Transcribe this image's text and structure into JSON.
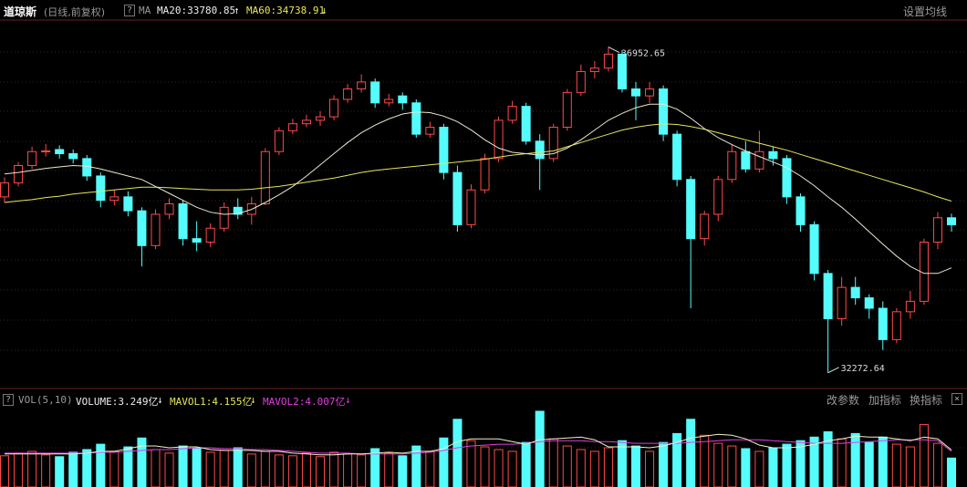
{
  "header": {
    "symbol": "道琼斯",
    "period": "(日线,前复权)",
    "help": "?",
    "ma_label": "MA",
    "ma20": "MA20:33780.85",
    "ma20_arrow": "↑",
    "ma60": "MA60:34738.91",
    "ma60_arrow": "↓",
    "settings": "设置均线"
  },
  "chart_data": {
    "type": "candlestick",
    "open": [
      34800,
      35000,
      35250,
      35450,
      35480,
      35420,
      35350,
      35100,
      34750,
      34800,
      34600,
      34100,
      34550,
      34700,
      34200,
      34150,
      34350,
      34650,
      34550,
      34700,
      35450,
      35750,
      35850,
      35900,
      35950,
      36200,
      36350,
      36450,
      36150,
      36250,
      36150,
      35700,
      35800,
      35150,
      34400,
      34900,
      35350,
      35900,
      36100,
      35600,
      35350,
      35800,
      36300,
      36600,
      36650,
      36850,
      36350,
      36250,
      36350,
      35700,
      35050,
      34200,
      34550,
      35050,
      35450,
      35200,
      35450,
      35350,
      34800,
      34400,
      33700,
      33050,
      33500,
      33350,
      33200,
      32750,
      33150,
      33300,
      34150,
      34500
    ],
    "high": [
      35080,
      35300,
      35520,
      35560,
      35540,
      35480,
      35400,
      35150,
      34900,
      34880,
      34650,
      34620,
      34780,
      34750,
      34450,
      34420,
      34720,
      34780,
      34800,
      35500,
      35800,
      35920,
      35980,
      36030,
      36260,
      36420,
      36560,
      36500,
      36280,
      36300,
      36200,
      35880,
      35850,
      35250,
      34980,
      35420,
      35950,
      36180,
      36150,
      35700,
      35850,
      36350,
      36700,
      36750,
      36952.65,
      36900,
      36450,
      36450,
      36400,
      35750,
      35100,
      34600,
      35100,
      35550,
      35600,
      35750,
      35520,
      35400,
      34850,
      34450,
      33750,
      33650,
      33650,
      33400,
      33300,
      33200,
      33450,
      34200,
      34580,
      34560
    ],
    "low": [
      34720,
      34950,
      35200,
      35380,
      35350,
      35280,
      35030,
      34650,
      34680,
      34520,
      33800,
      34050,
      34480,
      34100,
      34020,
      34080,
      34300,
      34480,
      34400,
      34680,
      35400,
      35700,
      35800,
      35820,
      35900,
      36150,
      36300,
      36080,
      36100,
      36050,
      35650,
      35650,
      35050,
      34300,
      34350,
      34850,
      35300,
      35850,
      35550,
      34900,
      35300,
      35750,
      36250,
      36500,
      36600,
      36300,
      35900,
      36150,
      35600,
      34950,
      33200,
      34100,
      34450,
      35000,
      35150,
      35150,
      35250,
      34700,
      34300,
      33600,
      32272.64,
      32950,
      33250,
      33050,
      32600,
      32700,
      33050,
      33250,
      34050,
      34300
    ],
    "close": [
      35000,
      35250,
      35450,
      35460,
      35420,
      35350,
      35100,
      34750,
      34800,
      34600,
      34100,
      34550,
      34700,
      34200,
      34150,
      34350,
      34650,
      34550,
      34700,
      35450,
      35750,
      35850,
      35900,
      35950,
      36200,
      36350,
      36450,
      36150,
      36200,
      36150,
      35700,
      35800,
      35150,
      34400,
      34900,
      35350,
      35900,
      36100,
      35600,
      35350,
      35800,
      36300,
      36600,
      36650,
      36850,
      36350,
      36250,
      36350,
      35700,
      35050,
      34200,
      34550,
      35050,
      35450,
      35200,
      35450,
      35350,
      34800,
      34400,
      33700,
      33050,
      33500,
      33350,
      33200,
      32750,
      33150,
      33300,
      34150,
      34500,
      34400
    ],
    "ma20": [
      35130,
      35150,
      35180,
      35210,
      35230,
      35250,
      35240,
      35200,
      35150,
      35100,
      35050,
      34950,
      34850,
      34750,
      34650,
      34580,
      34550,
      34560,
      34620,
      34720,
      34830,
      34950,
      35100,
      35260,
      35420,
      35580,
      35720,
      35830,
      35920,
      35990,
      36020,
      36010,
      35960,
      35880,
      35760,
      35620,
      35500,
      35440,
      35420,
      35400,
      35420,
      35500,
      35620,
      35760,
      35900,
      36000,
      36080,
      36130,
      36130,
      36060,
      35930,
      35780,
      35650,
      35550,
      35460,
      35380,
      35300,
      35220,
      35100,
      34960,
      34800,
      34650,
      34480,
      34300,
      34120,
      33950,
      33800,
      33700,
      33700,
      33780.85
    ],
    "ma60": [
      34720,
      34740,
      34760,
      34790,
      34810,
      34840,
      34860,
      34880,
      34900,
      34920,
      34940,
      34940,
      34930,
      34920,
      34910,
      34900,
      34900,
      34900,
      34910,
      34930,
      34950,
      34980,
      35010,
      35040,
      35070,
      35110,
      35150,
      35180,
      35200,
      35220,
      35240,
      35260,
      35280,
      35300,
      35320,
      35340,
      35370,
      35400,
      35420,
      35440,
      35460,
      35520,
      35580,
      35640,
      35700,
      35760,
      35800,
      35830,
      35850,
      35840,
      35810,
      35770,
      35720,
      35670,
      35620,
      35570,
      35520,
      35470,
      35410,
      35350,
      35290,
      35230,
      35170,
      35110,
      35050,
      34990,
      34930,
      34870,
      34800,
      34738.91
    ],
    "ma20_color": "#e8e8d0",
    "ma60_color": "#e6e65a",
    "up_color": "#ff4a4a",
    "down_color": "#54fcfc",
    "ylim": [
      32100,
      37300
    ],
    "annotations": [
      {
        "text": "36952.65",
        "index": 44,
        "at": "high"
      },
      {
        "text": "32272.64",
        "index": 60,
        "at": "low"
      }
    ]
  },
  "volume": {
    "help": "?",
    "label": "VOL(5,10)",
    "volume": "VOLUME:3.249亿",
    "volume_arrow": "↓",
    "mavol1": "MAVOL1:4.155亿",
    "mavol1_arrow": "↓",
    "mavol2": "MAVOL2:4.007亿",
    "mavol2_arrow": "↓",
    "buttons": [
      "改参数",
      "加指标",
      "换指标"
    ],
    "close": "×",
    "values": [
      3.5,
      3.8,
      4.0,
      3.6,
      3.4,
      3.9,
      4.2,
      4.8,
      4.0,
      4.5,
      5.5,
      4.2,
      3.8,
      4.6,
      4.3,
      3.9,
      4.1,
      4.4,
      3.7,
      4.0,
      3.6,
      3.5,
      3.8,
      3.4,
      3.9,
      3.7,
      3.6,
      4.3,
      3.8,
      3.5,
      4.6,
      4.0,
      5.5,
      7.6,
      5.2,
      4.5,
      4.2,
      4.0,
      5.0,
      8.5,
      5.4,
      4.6,
      4.2,
      4.0,
      4.4,
      5.2,
      4.6,
      4.0,
      5.0,
      6.0,
      7.6,
      5.8,
      4.9,
      4.6,
      4.3,
      4.0,
      4.4,
      4.8,
      5.2,
      5.6,
      6.2,
      5.4,
      6.0,
      5.0,
      5.6,
      4.8,
      4.5,
      7.0,
      4.9,
      3.249
    ],
    "mavol1_values": [
      3.7,
      3.7,
      3.7,
      3.7,
      3.7,
      3.7,
      3.8,
      4.0,
      4.0,
      4.3,
      4.6,
      4.6,
      4.4,
      4.5,
      4.5,
      4.2,
      4.1,
      4.1,
      4.1,
      4.0,
      4.0,
      3.8,
      3.7,
      3.6,
      3.6,
      3.7,
      3.7,
      3.8,
      3.9,
      3.8,
      4.0,
      4.0,
      4.3,
      5.1,
      5.4,
      5.4,
      5.4,
      5.1,
      4.8,
      5.3,
      5.4,
      5.5,
      5.6,
      5.3,
      4.5,
      4.5,
      4.5,
      4.4,
      4.6,
      5.0,
      5.5,
      5.7,
      5.9,
      5.8,
      5.4,
      4.7,
      4.4,
      4.4,
      4.5,
      4.8,
      5.2,
      5.4,
      5.7,
      5.6,
      5.6,
      5.4,
      5.2,
      5.6,
      5.4,
      4.155
    ],
    "mavol2_values": [
      3.8,
      3.8,
      3.8,
      3.8,
      3.8,
      3.8,
      3.8,
      3.9,
      3.9,
      4.0,
      4.1,
      4.2,
      4.2,
      4.3,
      4.4,
      4.4,
      4.3,
      4.3,
      4.2,
      4.2,
      4.1,
      4.0,
      3.9,
      3.8,
      3.8,
      3.8,
      3.7,
      3.7,
      3.7,
      3.7,
      3.8,
      3.9,
      4.1,
      4.4,
      4.6,
      4.7,
      4.8,
      4.8,
      4.9,
      5.1,
      5.2,
      5.2,
      5.2,
      5.1,
      5.1,
      5.0,
      4.9,
      4.9,
      4.9,
      4.9,
      5.0,
      5.1,
      5.2,
      5.3,
      5.3,
      5.3,
      5.2,
      5.1,
      5.0,
      4.9,
      4.9,
      4.9,
      5.0,
      5.1,
      5.2,
      5.3,
      5.3,
      5.3,
      5.2,
      4.007
    ],
    "mavol1_color": "#f0f0c8",
    "mavol2_color": "#e040e0",
    "ylim": [
      0,
      8.8
    ]
  }
}
